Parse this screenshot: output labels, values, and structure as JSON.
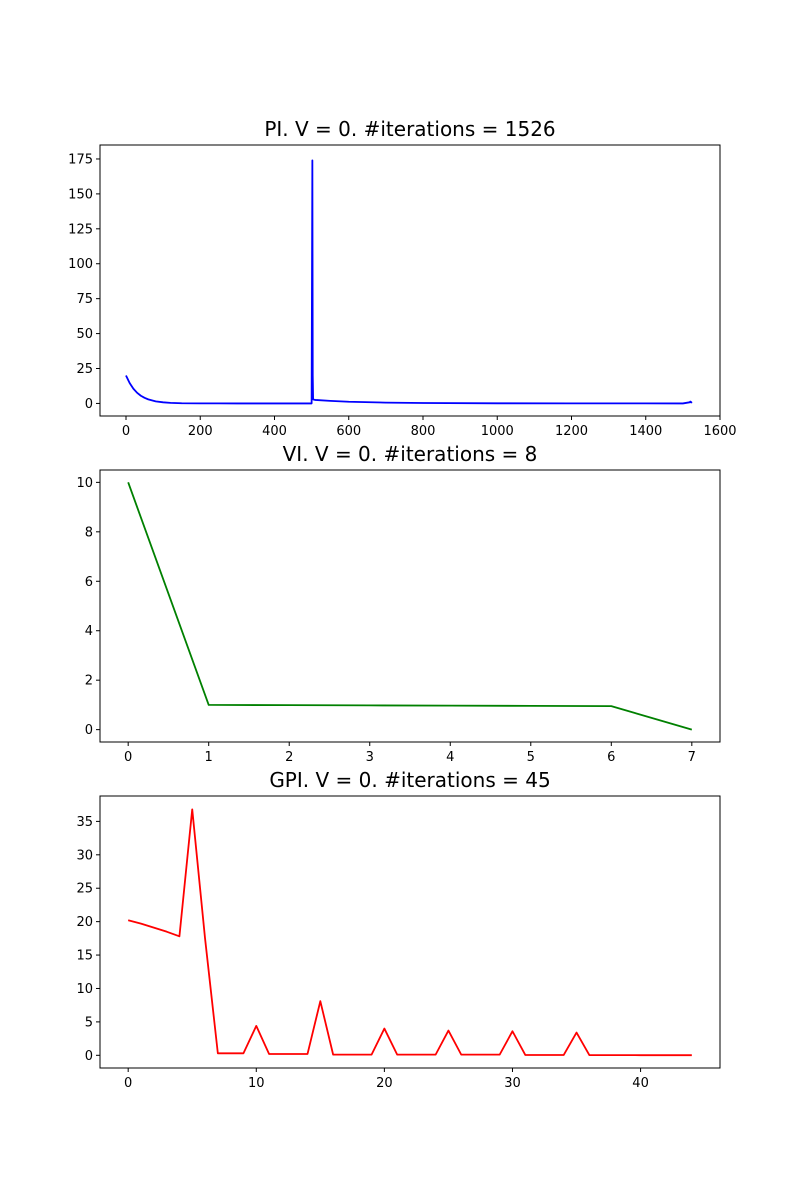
{
  "chart_data": [
    {
      "type": "line",
      "title": "PI. V = 0. #iterations = 1526",
      "xlabel": "",
      "ylabel": "",
      "xlim": [
        -70,
        1600
      ],
      "ylim": [
        -9,
        185
      ],
      "xticks": [
        0,
        200,
        400,
        600,
        800,
        1000,
        1200,
        1400,
        1600
      ],
      "xtick_labels": [
        "0",
        "200",
        "400",
        "600",
        "800",
        "1000",
        "1200",
        "1400",
        "1600"
      ],
      "yticks": [
        0,
        25,
        50,
        75,
        100,
        125,
        150,
        175
      ],
      "ytick_labels": [
        "0",
        "25",
        "50",
        "75",
        "100",
        "125",
        "150",
        "175"
      ],
      "grid": false,
      "series": [
        {
          "color": "#0000ff",
          "x": [
            0,
            10,
            20,
            30,
            40,
            50,
            60,
            80,
            100,
            120,
            150,
            200,
            250,
            300,
            400,
            500,
            502,
            503,
            504,
            505,
            506,
            510,
            550,
            600,
            700,
            800,
            1000,
            1200,
            1400,
            1500,
            1518,
            1520,
            1522,
            1525
          ],
          "y": [
            20,
            14.5,
            10.5,
            7.6,
            5.5,
            4,
            2.9,
            1.5,
            0.8,
            0.4,
            0.15,
            0.03,
            0.01,
            0,
            0,
            0,
            174,
            20,
            3,
            2.8,
            2.7,
            2.5,
            1.8,
            1.2,
            0.6,
            0.3,
            0.1,
            0.03,
            0.01,
            0,
            0.8,
            1.3,
            0.7,
            0.9
          ]
        }
      ]
    },
    {
      "type": "line",
      "title": "VI. V = 0. #iterations = 8",
      "xlabel": "",
      "ylabel": "",
      "xlim": [
        -0.35,
        7.35
      ],
      "ylim": [
        -0.5,
        10.5
      ],
      "xticks": [
        0,
        1,
        2,
        3,
        4,
        5,
        6,
        7
      ],
      "xtick_labels": [
        "0",
        "1",
        "2",
        "3",
        "4",
        "5",
        "6",
        "7"
      ],
      "yticks": [
        0,
        2,
        4,
        6,
        8,
        10
      ],
      "ytick_labels": [
        "0",
        "2",
        "4",
        "6",
        "8",
        "10"
      ],
      "grid": false,
      "series": [
        {
          "color": "#008000",
          "x": [
            0,
            1,
            2,
            3,
            4,
            5,
            6,
            7
          ],
          "y": [
            10,
            1,
            0.99,
            0.98,
            0.97,
            0.96,
            0.95,
            0
          ]
        }
      ]
    },
    {
      "type": "line",
      "title": "GPI. V = 0. #iterations = 45",
      "xlabel": "",
      "ylabel": "",
      "xlim": [
        -2.2,
        46.2
      ],
      "ylim": [
        -1.9,
        38.8
      ],
      "xticks": [
        0,
        10,
        20,
        30,
        40
      ],
      "xtick_labels": [
        "0",
        "10",
        "20",
        "30",
        "40"
      ],
      "yticks": [
        0,
        5,
        10,
        15,
        20,
        25,
        30,
        35
      ],
      "ytick_labels": [
        "0",
        "5",
        "10",
        "15",
        "20",
        "25",
        "30",
        "35"
      ],
      "grid": false,
      "series": [
        {
          "color": "#ff0000",
          "x": [
            0,
            1,
            2,
            3,
            4,
            5,
            6,
            7,
            8,
            9,
            10,
            11,
            12,
            13,
            14,
            15,
            16,
            17,
            18,
            19,
            20,
            21,
            22,
            23,
            24,
            25,
            26,
            27,
            28,
            29,
            30,
            31,
            32,
            33,
            34,
            35,
            36,
            37,
            38,
            39,
            40,
            41,
            42,
            43,
            44
          ],
          "y": [
            20.2,
            19.7,
            19.1,
            18.5,
            17.8,
            36.8,
            17.5,
            0.3,
            0.3,
            0.3,
            4.4,
            0.2,
            0.2,
            0.2,
            0.2,
            8.1,
            0.1,
            0.1,
            0.1,
            0.1,
            4,
            0.1,
            0.1,
            0.1,
            0.1,
            3.7,
            0.1,
            0.1,
            0.1,
            0.1,
            3.6,
            0.05,
            0.05,
            0.05,
            0.05,
            3.4,
            0.03,
            0.03,
            0.03,
            0.03,
            0.02,
            0.02,
            0.02,
            0.02,
            0.02
          ]
        }
      ]
    }
  ]
}
